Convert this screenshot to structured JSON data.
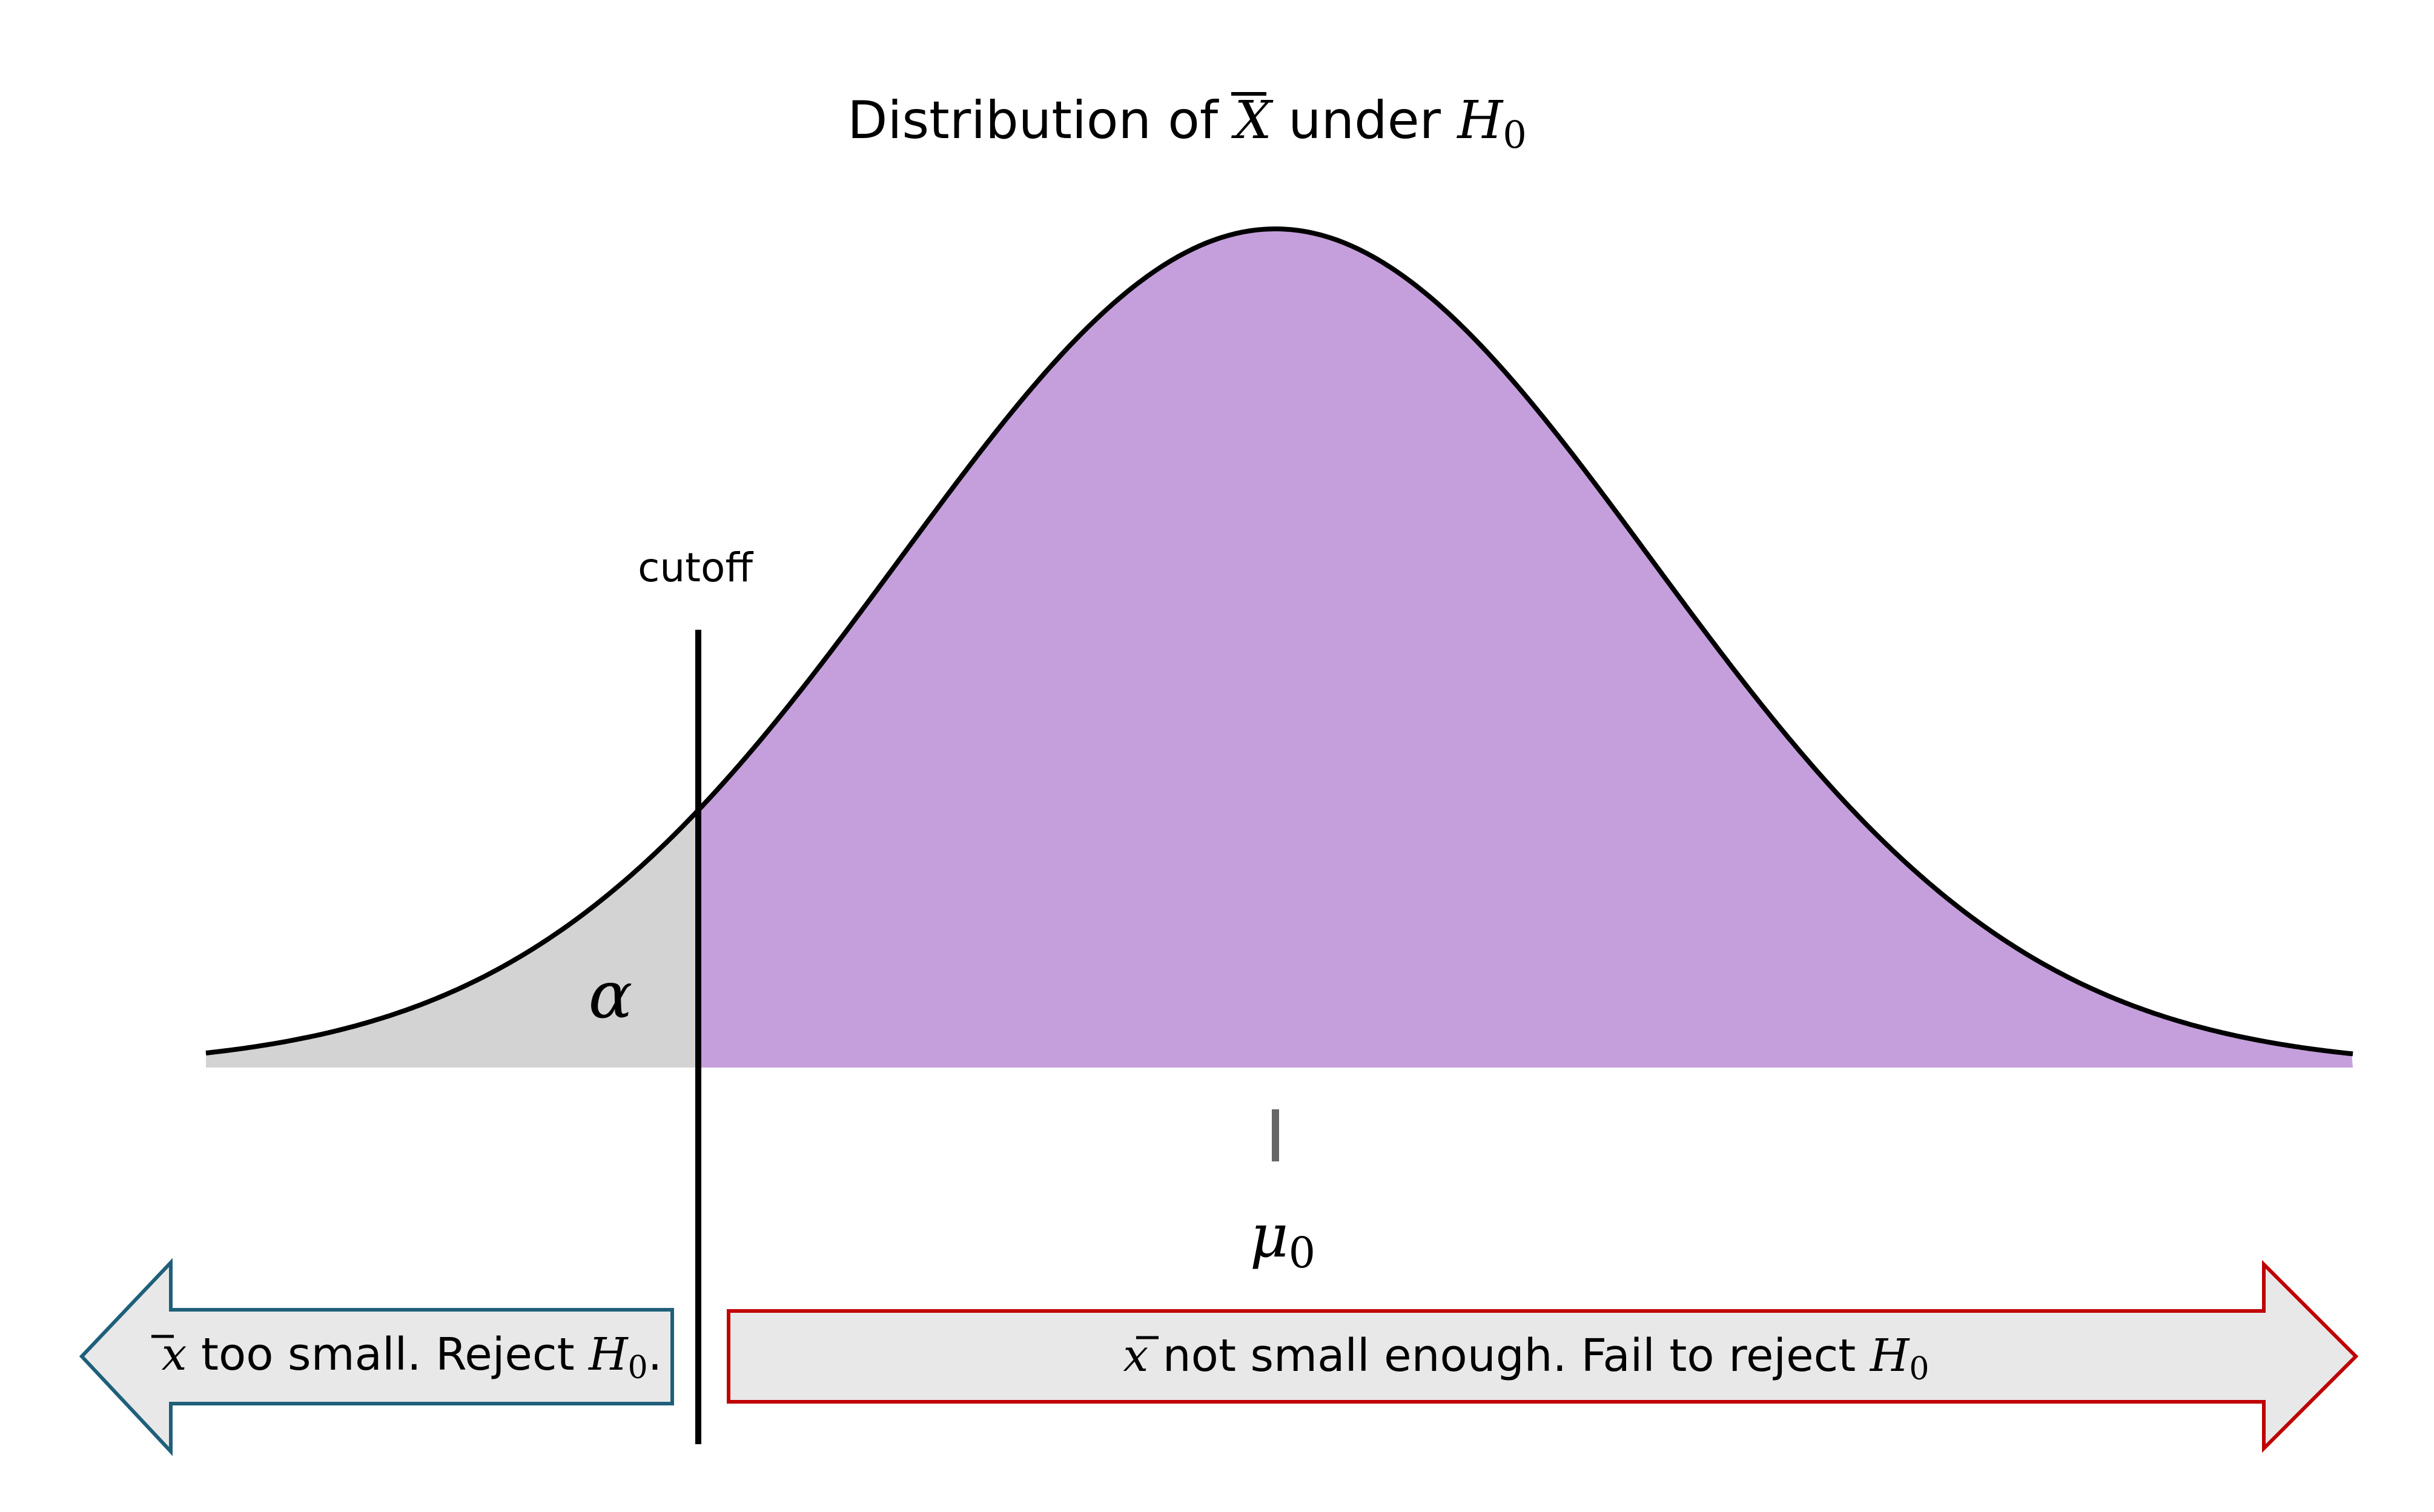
{
  "title": {
    "prefix": "Distribution of ",
    "symbol": "X",
    "middle": " under ",
    "hypothesis": "H",
    "hypothesis_sub": "0"
  },
  "cutoff_label": "cutoff",
  "alpha_label": "α",
  "mean_label": {
    "symbol": "μ",
    "sub": "0"
  },
  "left_arrow": {
    "symbol": "x",
    "text": " too small.  Reject ",
    "hypothesis": "H",
    "hypothesis_sub": "0",
    "end": "."
  },
  "right_arrow": {
    "symbol": "x",
    "text": " not small enough. Fail to reject ",
    "hypothesis": "H",
    "hypothesis_sub": "0"
  },
  "colors": {
    "accept_region": "#c59fdb",
    "reject_region": "#d3d3d3",
    "curve": "#000000",
    "cutoff_line": "#000000",
    "mean_tick": "#666666",
    "left_arrow_border": "#1f5f7a",
    "right_arrow_border": "#c00000",
    "arrow_fill": "#e8e8e8"
  }
}
